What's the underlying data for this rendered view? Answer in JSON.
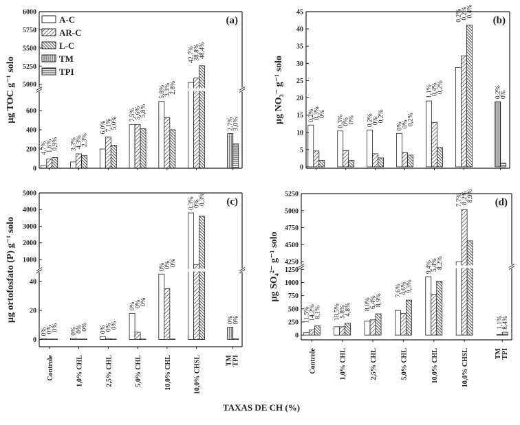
{
  "chart_data": {
    "type": "bar",
    "xlabel": "TAXAS DE CH (%)",
    "categories": [
      "Controle",
      "1,0% CHL",
      "2,5% CHL",
      "5,0% CHL",
      "10,0% CHL",
      "10,0% CHSL",
      "TM / TPI"
    ],
    "legend": {
      "placement": "top-left of panel (a)",
      "entries": [
        "A-C",
        "AR-C",
        "L-C",
        "TM",
        "TPI"
      ]
    },
    "colors": {
      "bar_fill": "#ffffff",
      "bar_stroke": "#222222",
      "hatch": "#333333"
    },
    "grid": false,
    "panels": [
      {
        "tag": "(a)",
        "ylabel": "µg TOC g⁻¹ solo",
        "y_broken_axis": {
          "lower": [
            0,
            800
          ],
          "upper": [
            4950,
            6000
          ]
        },
        "yticks": [
          0,
          200,
          400,
          600,
          5000,
          5250,
          5500,
          5750,
          6000
        ],
        "show_xtick_labels": false,
        "series": [
          {
            "name": "A-C",
            "values": [
              30,
              65,
              200,
              455,
              695,
              5025
            ]
          },
          {
            "name": "AR-C",
            "values": [
              95,
              150,
              325,
              455,
              525,
              5085
            ]
          },
          {
            "name": "L-C",
            "values": [
              110,
              130,
              240,
              410,
              400,
              5255
            ]
          }
        ],
        "reference": [
          {
            "name": "TM",
            "value": 360
          },
          {
            "name": "TPI",
            "value": 255
          }
        ],
        "bar_labels": [
          [
            "4,7%",
            "1,6%",
            "0,9%"
          ],
          [
            "3,3%",
            "4,3%",
            "2,3%"
          ],
          [
            "6,0%",
            "7,1%",
            "5,0%"
          ],
          [
            "7,5%",
            "5,6%",
            "5,8%"
          ],
          [
            "5,8%",
            "3,3%",
            "2,8%"
          ],
          [
            "42,7%",
            "38,8%",
            "48,4%"
          ],
          [
            "2,7%",
            "3,0%"
          ]
        ]
      },
      {
        "tag": "(b)",
        "ylabel": "µg NO₃⁻ g⁻¹ solo",
        "y_broken_axis": null,
        "ylim": [
          0,
          45
        ],
        "yticks": [
          0,
          5,
          10,
          15,
          20,
          25,
          30,
          35,
          40,
          45
        ],
        "show_xtick_labels": false,
        "series": [
          {
            "name": "A-C",
            "values": [
              12.1,
              10.4,
              10.7,
              9.7,
              19.1,
              28.8
            ]
          },
          {
            "name": "AR-C",
            "values": [
              4.6,
              4.7,
              3.8,
              4.1,
              12.9,
              32.2
            ]
          },
          {
            "name": "L-C",
            "values": [
              1.9,
              1.9,
              2.6,
              3.4,
              5.6,
              41.1
            ]
          }
        ],
        "reference": [
          {
            "name": "TM",
            "value": 18.9
          },
          {
            "name": "TPI",
            "value": 1.1
          }
        ],
        "bar_labels": [
          [
            "0,2%",
            "0,3%",
            "0%"
          ],
          [
            "0,3%",
            "0%",
            "0%"
          ],
          [
            "0,2%",
            "0%",
            "0,2%"
          ],
          [
            "0%",
            "0%",
            "0,2%"
          ],
          [
            "1,1%",
            "0,4%",
            "0,2%"
          ],
          [
            "0,2%",
            "0,2%",
            "0,4%"
          ],
          [
            "0,2%",
            "0%"
          ]
        ]
      },
      {
        "tag": "(c)",
        "ylabel": "µg ortofosfato (P) g⁻¹ solo",
        "y_broken_axis": {
          "lower": [
            -5,
            47
          ],
          "upper": [
            420,
            5000
          ]
        },
        "yticks": [
          0,
          20,
          40,
          1000,
          2000,
          3000,
          4000,
          5000
        ],
        "show_xtick_labels": true,
        "series": [
          {
            "name": "A-C",
            "values": [
              0.5,
              0.8,
              2,
              18,
              45,
              3800
            ]
          },
          {
            "name": "AR-C",
            "values": [
              0.3,
              0.3,
              0.5,
              5,
              35,
              700
            ]
          },
          {
            "name": "L-C",
            "values": [
              0.3,
              0.3,
              0.3,
              0.3,
              0.3,
              3600
            ]
          }
        ],
        "reference": [
          {
            "name": "TM",
            "value": 8.5
          },
          {
            "name": "TPI",
            "value": 0.5
          }
        ],
        "bar_labels": [
          [
            "0%",
            "0%",
            "0%"
          ],
          [
            "0%",
            "0%",
            "0%"
          ],
          [
            "0%",
            "0%",
            "0%"
          ],
          [
            "0%",
            "0%",
            "0%"
          ],
          [
            "0%",
            "0%",
            "0%"
          ],
          [
            "0,3%",
            "0%",
            "0,3%"
          ],
          [
            "0%",
            "0%"
          ]
        ]
      },
      {
        "tag": "(d)",
        "ylabel": "µg SO₄²⁻ g⁻¹ solo",
        "y_broken_axis": {
          "lower": [
            -90,
            1280
          ],
          "upper": [
            4190,
            5250
          ]
        },
        "yticks": [
          0,
          250,
          500,
          750,
          1000,
          1250,
          4250,
          4500,
          4750,
          5000,
          5250
        ],
        "show_xtick_labels": true,
        "series": [
          {
            "name": "A-C",
            "values": [
              45,
              160,
              265,
              470,
              1110,
              4250
            ]
          },
          {
            "name": "AR-C",
            "values": [
              100,
              160,
              290,
              415,
              775,
              5015
            ]
          },
          {
            "name": "L-C",
            "values": [
              175,
              225,
              405,
              665,
              1025,
              4555
            ]
          }
        ],
        "reference": [
          {
            "name": "TM",
            "value": 10
          },
          {
            "name": "TPI",
            "value": 55
          }
        ],
        "bar_labels": [
          [
            "11,5%",
            "14,2%",
            "8,1%"
          ],
          [
            "10,5%",
            "5,8%",
            "4,8%"
          ],
          [
            "8,0%",
            "6,4%",
            "8,9%"
          ],
          [
            "7,6%",
            "4,6%",
            "9,3%"
          ],
          [
            "9,4%",
            "5,4%",
            "8,2%"
          ],
          [
            "7,7%",
            "8,2%",
            "8,9%"
          ],
          [
            "1,1%",
            "8,4%"
          ]
        ]
      }
    ]
  }
}
